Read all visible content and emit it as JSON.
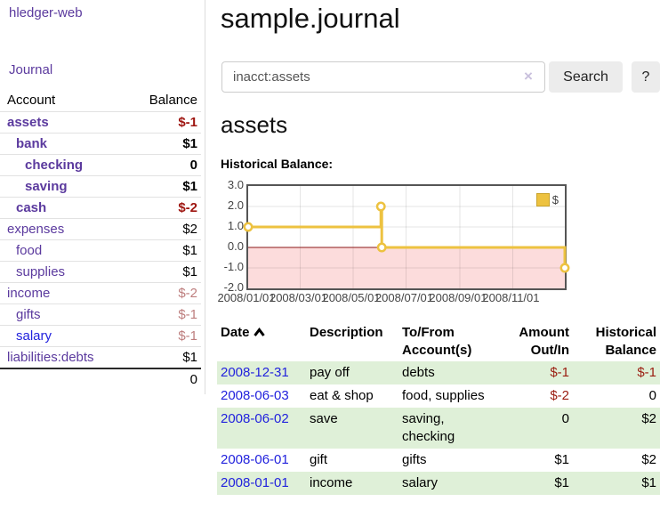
{
  "colors": {
    "accent_purple": "#5b3a9e",
    "link_blue": "#2222dd",
    "negative_strong": "#9e1510",
    "negative_soft": "#bd7d7d",
    "table_negative": "#9a1c10",
    "row_highlight_green": "#dff0d8",
    "chart_line": "#edc240",
    "chart_negative_fill": "#fcdcdc",
    "chart_zero_line": "#8b1616",
    "button_gray": "#ececec"
  },
  "sidebar": {
    "brand": "hledger-web",
    "journal_link": "Journal",
    "accounts": {
      "headers": {
        "account": "Account",
        "balance": "Balance"
      },
      "rows": [
        {
          "name": "assets",
          "balance": "$-1",
          "indent": 1,
          "bold": true,
          "tone": "neg-strong",
          "link": "purple"
        },
        {
          "name": "bank",
          "balance": "$1",
          "indent": 2,
          "bold": true,
          "tone": "pos",
          "link": "purple"
        },
        {
          "name": "checking",
          "balance": "0",
          "indent": 3,
          "bold": true,
          "tone": "pos",
          "link": "purple"
        },
        {
          "name": "saving",
          "balance": "$1",
          "indent": 3,
          "bold": true,
          "tone": "pos",
          "link": "purple"
        },
        {
          "name": "cash",
          "balance": "$-2",
          "indent": 2,
          "bold": true,
          "tone": "neg-strong",
          "link": "purple"
        },
        {
          "name": "expenses",
          "balance": "$2",
          "indent": 1,
          "bold": false,
          "tone": "pos",
          "link": "purple"
        },
        {
          "name": "food",
          "balance": "$1",
          "indent": 2,
          "bold": false,
          "tone": "pos",
          "link": "purple"
        },
        {
          "name": "supplies",
          "balance": "$1",
          "indent": 2,
          "bold": false,
          "tone": "pos",
          "link": "purple"
        },
        {
          "name": "income",
          "balance": "$-2",
          "indent": 1,
          "bold": false,
          "tone": "neg-soft",
          "link": "purple"
        },
        {
          "name": "gifts",
          "balance": "$-1",
          "indent": 2,
          "bold": false,
          "tone": "neg-soft",
          "link": "purple"
        },
        {
          "name": "salary",
          "balance": "$-1",
          "indent": 2,
          "bold": false,
          "tone": "neg-soft",
          "link": "blue"
        },
        {
          "name": "liabilities:debts",
          "balance": "$1",
          "indent": 1,
          "bold": false,
          "tone": "pos",
          "link": "purple"
        }
      ],
      "total": "0"
    }
  },
  "main": {
    "title": "sample.journal",
    "search": {
      "value": "inacct:assets",
      "clear_icon": "×",
      "search_button": "Search",
      "help_button": "?"
    },
    "register_heading": "assets",
    "chart_title": "Historical Balance:"
  },
  "chart_data": {
    "type": "line",
    "step": true,
    "title": "Historical Balance:",
    "legend": {
      "label": "$",
      "position": "top-right"
    },
    "grid": true,
    "ylim": [
      -2,
      3
    ],
    "yticks": [
      {
        "label": "3.0",
        "value": 3
      },
      {
        "label": "2.0",
        "value": 2
      },
      {
        "label": "1.0",
        "value": 1
      },
      {
        "label": "0.0",
        "value": 0
      },
      {
        "label": "-1.0",
        "value": -1
      },
      {
        "label": "-2.0",
        "value": -2
      }
    ],
    "xmax_days": 365,
    "xticks": [
      {
        "label": "2008/01/01",
        "day": 0
      },
      {
        "label": "2008/03/01",
        "day": 60
      },
      {
        "label": "2008/05/01",
        "day": 121
      },
      {
        "label": "2008/07/01",
        "day": 182
      },
      {
        "label": "2008/09/01",
        "day": 244
      },
      {
        "label": "2008/11/01",
        "day": 305
      }
    ],
    "series": [
      {
        "name": "$",
        "points": [
          {
            "date": "2008-01-01",
            "day": 0,
            "value": 1
          },
          {
            "date": "2008-06-02",
            "day": 153,
            "value": 2
          },
          {
            "date": "2008-06-03",
            "day": 154,
            "value": 0
          },
          {
            "date": "2008-12-31",
            "day": 365,
            "value": -1
          }
        ]
      }
    ],
    "negative_region_shaded": true
  },
  "register_table": {
    "headers": {
      "date": "Date",
      "description": "Description",
      "accounts_line1": "To/From",
      "accounts_line2": "Account(s)",
      "amount_line1": "Amount",
      "amount_line2": "Out/In",
      "balance_line1": "Historical",
      "balance_line2": "Balance",
      "sort_icon": "chevron-up"
    },
    "rows": [
      {
        "date": "2008-12-31",
        "description": "pay off",
        "accounts": "debts",
        "amount": "$-1",
        "balance": "$-1",
        "amount_neg": true,
        "balance_neg": true,
        "highlight": true
      },
      {
        "date": "2008-06-03",
        "description": "eat & shop",
        "accounts": "food, supplies",
        "amount": "$-2",
        "balance": "0",
        "amount_neg": true,
        "balance_neg": false,
        "highlight": false
      },
      {
        "date": "2008-06-02",
        "description": "save",
        "accounts": "saving, checking",
        "amount": "0",
        "balance": "$2",
        "amount_neg": false,
        "balance_neg": false,
        "highlight": true
      },
      {
        "date": "2008-06-01",
        "description": "gift",
        "accounts": "gifts",
        "amount": "$1",
        "balance": "$2",
        "amount_neg": false,
        "balance_neg": false,
        "highlight": false
      },
      {
        "date": "2008-01-01",
        "description": "income",
        "accounts": "salary",
        "amount": "$1",
        "balance": "$1",
        "amount_neg": false,
        "balance_neg": false,
        "highlight": true
      }
    ]
  }
}
